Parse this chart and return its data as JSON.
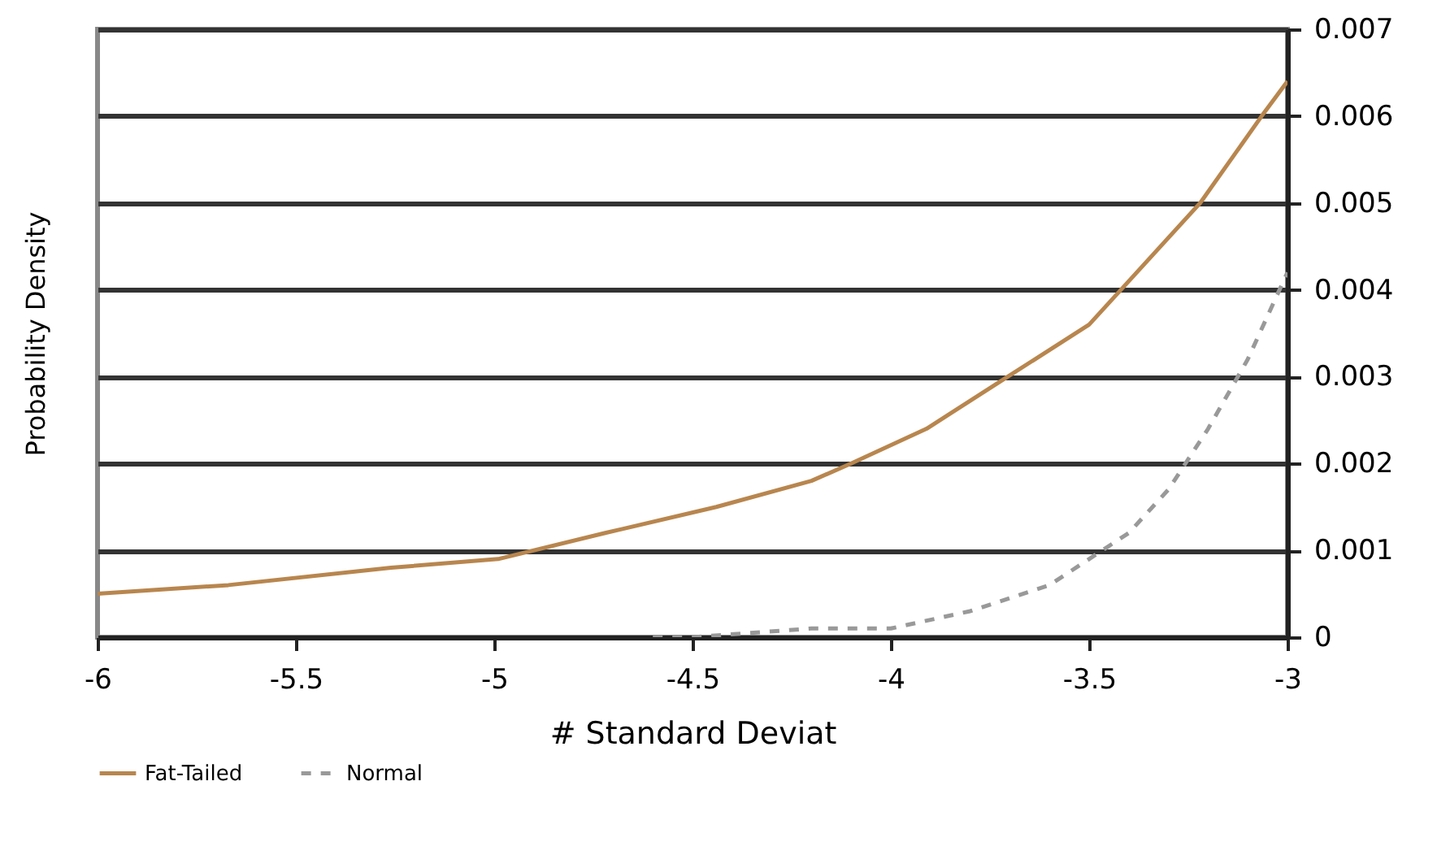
{
  "chart_data": {
    "type": "line",
    "xlabel": "# Standard Deviat",
    "ylabel": "Probability Density",
    "xlim": [
      -6,
      -3
    ],
    "xticks": [
      -6,
      -5.5,
      -5,
      -4.5,
      -4,
      -3.5,
      -3
    ],
    "ylim": [
      0,
      0.007
    ],
    "yticks": [
      0,
      0.001,
      0.002,
      0.003,
      0.004,
      0.005,
      0.006,
      0.007
    ],
    "grid": "y",
    "legend": "bottom",
    "series": [
      {
        "name": "Fat-Tailed",
        "color": "#b8864e",
        "line_style": "solid",
        "x": [
          -6,
          -5.67,
          -5.26,
          -4.99,
          -4.72,
          -4.44,
          -4.2,
          -4.1,
          -3.91,
          -3.705,
          -3.5,
          -3.42,
          -3.22,
          -3.065,
          -3
        ],
        "values": [
          0.0005,
          0.0006,
          0.0008,
          0.0009,
          0.0012,
          0.0015,
          0.0018,
          0.002,
          0.0024,
          0.003,
          0.0036,
          0.004,
          0.005,
          0.006,
          0.0064
        ]
      },
      {
        "name": "Normal",
        "color": "#999999",
        "line_style": "dashed",
        "x": [
          -4.6,
          -4.5,
          -4.2,
          -4,
          -3.8,
          -3.6,
          -3.5,
          -3.4,
          -3.3,
          -3.2,
          -3.1,
          -3
        ],
        "values": [
          0,
          0,
          0.0001,
          0.0001,
          0.0003,
          0.0006,
          0.0009,
          0.0012,
          0.0017,
          0.0024,
          0.0032,
          0.0042
        ]
      }
    ]
  }
}
